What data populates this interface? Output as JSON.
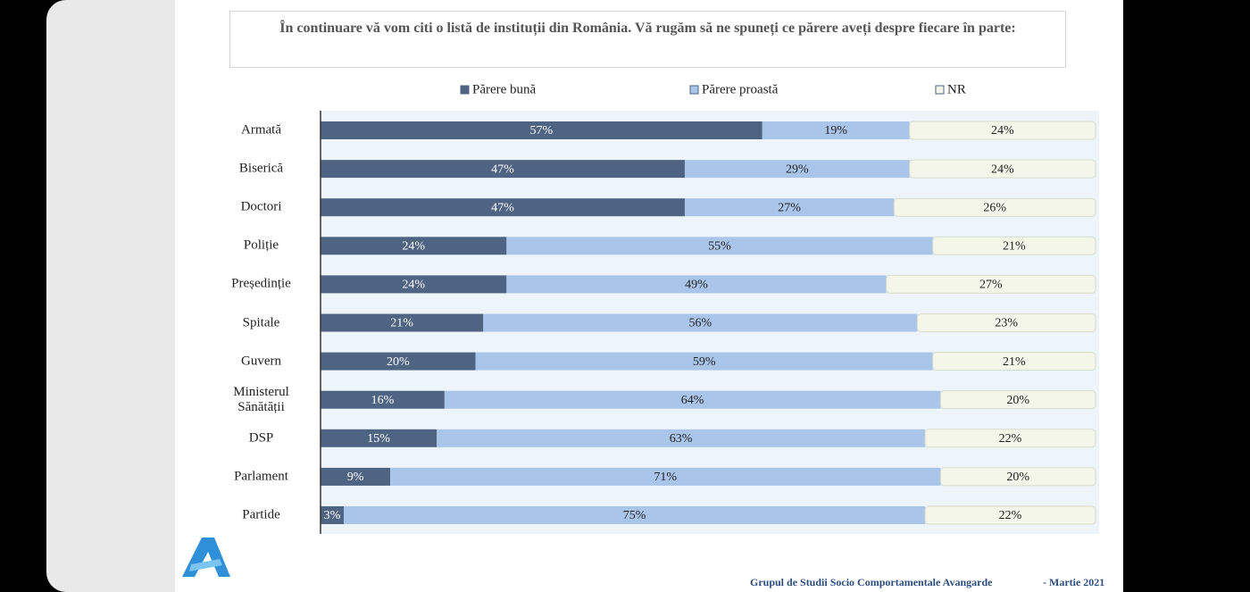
{
  "chart_data": {
    "type": "stacked-bar-horizontal",
    "title": "În continuare vă vom citi o listă de instituții din România. Vă rugăm să ne spuneți ce părere aveți despre fiecare în parte:",
    "categories": [
      "Armată",
      "Biserică",
      "Doctori",
      "Poliție",
      "Președinție",
      "Spitale",
      "Guvern",
      "Ministerul Sănătății",
      "DSP",
      "Parlament",
      "Partide"
    ],
    "series": [
      {
        "name": "Părere bună",
        "color": "#4f6482",
        "values": [
          57,
          47,
          47,
          24,
          24,
          21,
          20,
          16,
          15,
          9,
          3
        ],
        "value_labels": [
          "57%",
          "47%",
          "47%",
          "24%",
          "24%",
          "21%",
          "20%",
          "16%",
          "15%",
          "9%",
          "3%"
        ]
      },
      {
        "name": "Părere proastă",
        "color": "#a9c5ea",
        "values": [
          19,
          29,
          27,
          55,
          49,
          56,
          59,
          64,
          63,
          71,
          75
        ],
        "value_labels": [
          "19%",
          "29%",
          "27%",
          "55%",
          "49%",
          "56%",
          "59%",
          "64%",
          "63%",
          "71%",
          "75%"
        ]
      },
      {
        "name": "NR",
        "color": "#f3f6e8",
        "values": [
          24,
          24,
          26,
          21,
          27,
          23,
          21,
          20,
          22,
          20,
          22
        ],
        "value_labels": [
          "24%",
          "24%",
          "26%",
          "21%",
          "27%",
          "23%",
          "21%",
          "20%",
          "22%",
          "20%",
          "22%"
        ]
      }
    ],
    "source": "Grupul de Studii Socio Comportamentale Avangarde",
    "date": "- Martie 2021"
  }
}
